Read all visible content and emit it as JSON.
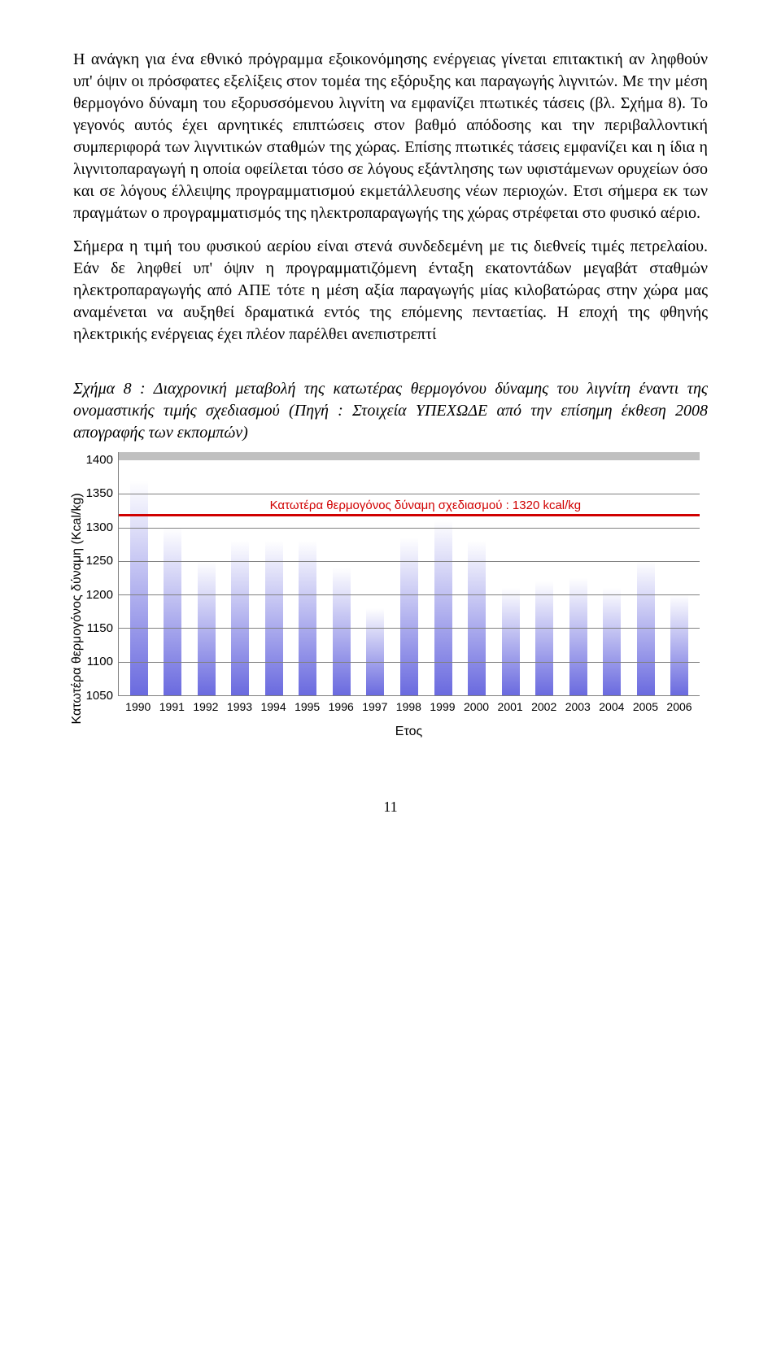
{
  "paragraphs": {
    "p1": "Η ανάγκη για ένα εθνικό πρόγραμμα εξοικονόμησης ενέργειας γίνεται επιτακτική αν ληφθούν υπ' όψιν οι πρόσφατες εξελίξεις στον τομέα της εξόρυξης και παραγωγής λιγνιτών. Με την μέση θερμογόνο δύναμη του εξορυσσόμενου λιγνίτη να εμφανίζει πτωτικές τάσεις (βλ. Σχήμα 8). Το γεγονός αυτός έχει αρνητικές επιπτώσεις στον βαθμό απόδοσης και την περιβαλλοντική συμπεριφορά των λιγνιτικών σταθμών της χώρας. Επίσης πτωτικές τάσεις εμφανίζει και η ίδια η λιγνιτοπαραγωγή η οποία οφείλεται τόσο σε λόγους εξάντλησης των υφιστάμενων ορυχείων όσο και σε λόγους έλλειψης προγραμματισμού εκμετάλλευσης νέων περιοχών. Ετσι σήμερα εκ των πραγμάτων ο προγραμματισμός της ηλεκτροπαραγωγής της χώρας στρέφεται στο φυσικό αέριο.",
    "p2": "Σήμερα η τιμή του φυσικού αερίου είναι στενά συνδεδεμένη με τις διεθνείς τιμές πετρελαίου. Εάν δε ληφθεί υπ' όψιν η προγραμματιζόμενη ένταξη εκατοντάδων μεγαβάτ σταθμών ηλεκτροπαραγωγής από ΑΠΕ τότε η μέση αξία παραγωγής μίας κιλοβατώρας στην χώρα μας αναμένεται να αυξηθεί δραματικά εντός της επόμενης πενταετίας.  Η εποχή της φθηνής ηλεκτρικής ενέργειας έχει πλέον παρέλθει ανεπιστρεπτί"
  },
  "caption": "Σχήμα 8 : Διαχρονική μεταβολή της κατωτέρας θερμογόνου δύναμης του λιγνίτη έναντι της ονομαστικής τιμής σχεδιασμού (Πηγή : Στοιχεία ΥΠΕΧΩΔΕ από την επίσημη έκθεση 2008 απογραφής των εκπομπών)",
  "chart": {
    "type": "bar",
    "y_label": "Κατωτέρα θερμογόνος δύναμη (Kcal/kg)",
    "x_label": "Ετος",
    "ylim": [
      1050,
      1400
    ],
    "yticks": [
      1400,
      1350,
      1300,
      1250,
      1200,
      1150,
      1100,
      1050
    ],
    "categories": [
      "1990",
      "1991",
      "1992",
      "1993",
      "1994",
      "1995",
      "1996",
      "1997",
      "1998",
      "1999",
      "2000",
      "2001",
      "2002",
      "2003",
      "2004",
      "2005",
      "2006"
    ],
    "values": [
      1370,
      1300,
      1250,
      1280,
      1280,
      1280,
      1240,
      1180,
      1285,
      1310,
      1280,
      1210,
      1220,
      1225,
      1210,
      1250,
      1200
    ],
    "bar_gradient_top": "#ffffff",
    "bar_gradient_bottom": "#6a6adf",
    "grid_color": "#808080",
    "plot_bg": "#ffffff",
    "plot_outer_bg": "#c0c0c0",
    "ref_value": 1320,
    "ref_color": "#d00000",
    "ref_label": "Κατωτέρα θερμογόνος δύναμη σχεδιασμού : 1320 kcal/kg",
    "tick_font_family": "Arial",
    "tick_font_size": 15
  },
  "page_number": "11"
}
